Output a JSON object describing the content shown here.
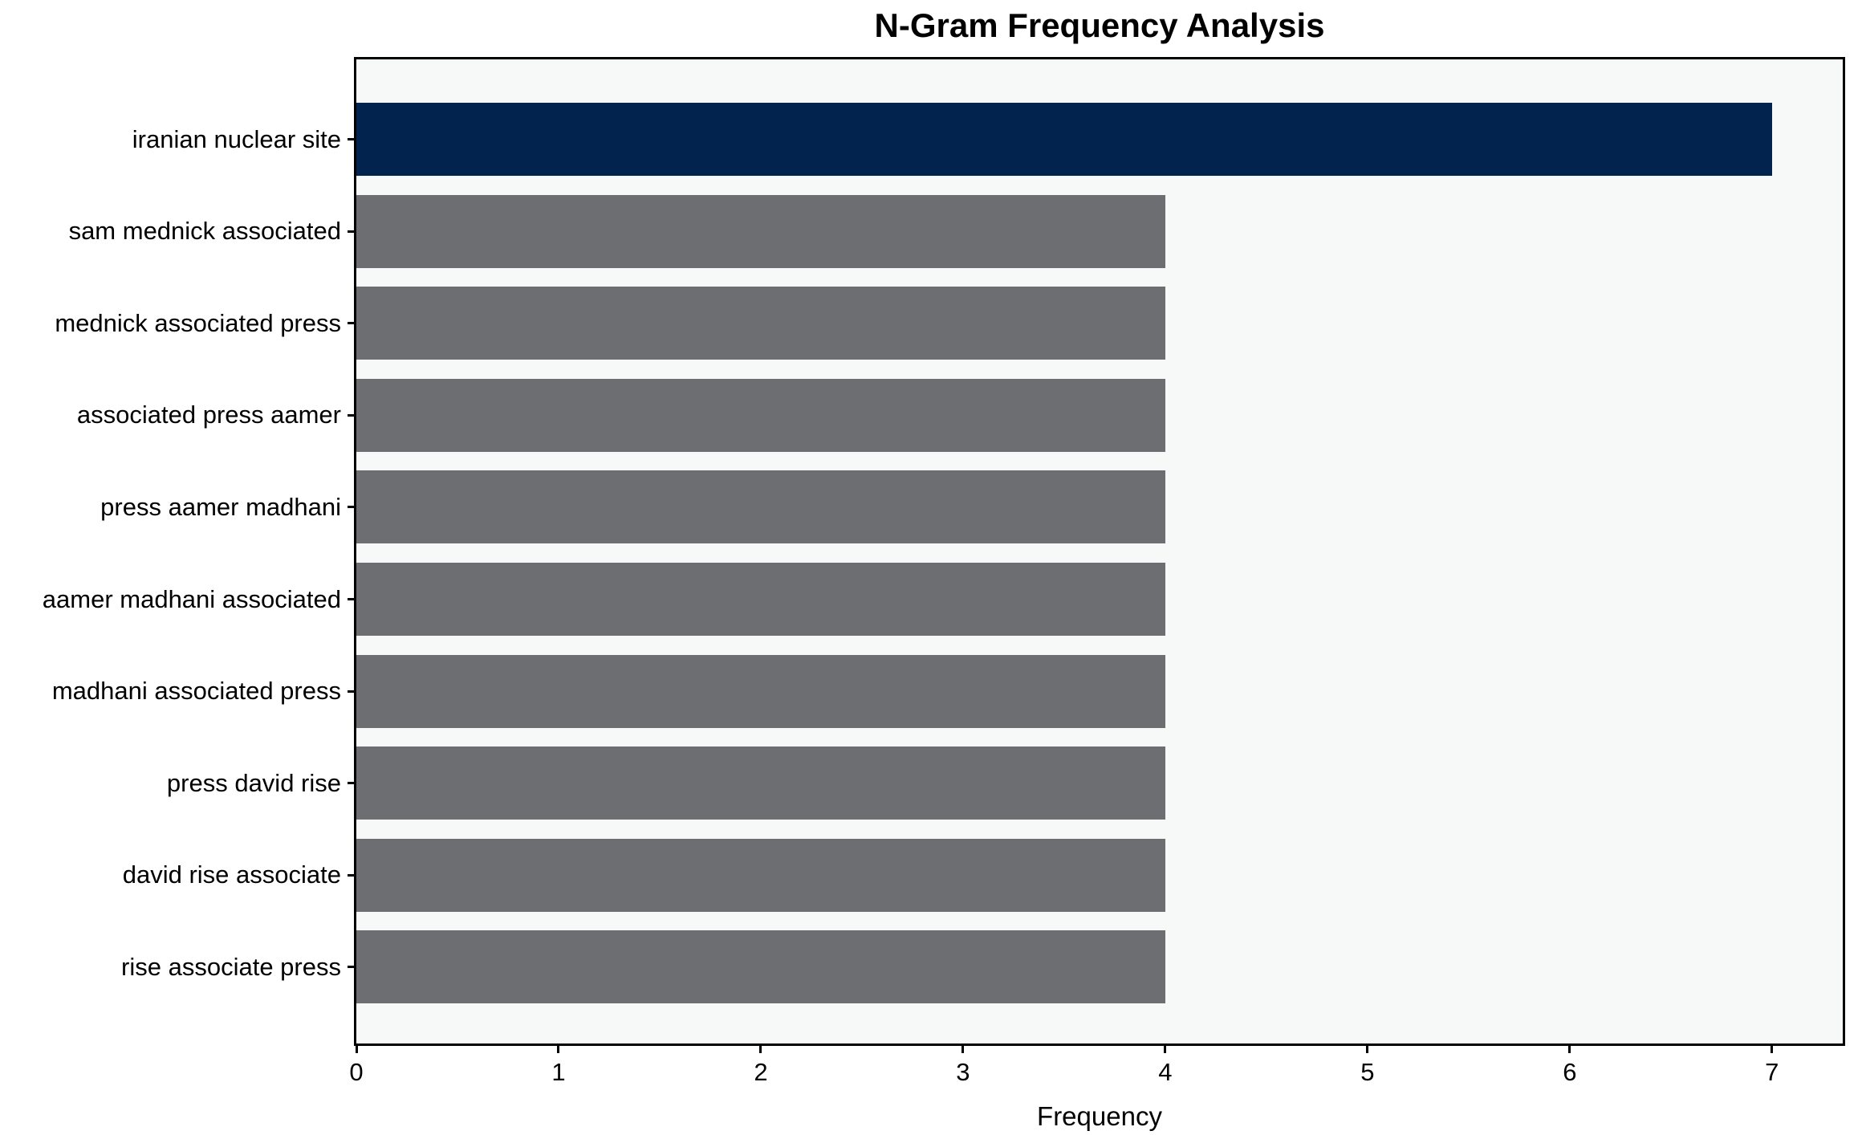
{
  "chart_data": {
    "type": "bar",
    "orientation": "horizontal",
    "title": "N-Gram Frequency Analysis",
    "xlabel": "Frequency",
    "ylabel": "",
    "categories": [
      "iranian nuclear site",
      "sam mednick associated",
      "mednick associated press",
      "associated press aamer",
      "press aamer madhani",
      "aamer madhani associated",
      "madhani associated press",
      "press david rise",
      "david rise associate",
      "rise associate press"
    ],
    "values": [
      7,
      4,
      4,
      4,
      4,
      4,
      4,
      4,
      4,
      4
    ],
    "bar_colors": [
      "#02234d",
      "#6d6e71",
      "#6d6e71",
      "#6d6e71",
      "#6d6e71",
      "#6d6e71",
      "#6d6e71",
      "#6d6e71",
      "#6d6e71",
      "#6d6e71"
    ],
    "x_ticks": [
      "0",
      "1",
      "2",
      "3",
      "4",
      "5",
      "6",
      "7"
    ],
    "xlim": [
      0,
      7.35
    ],
    "grid": false,
    "legend_position": "none",
    "colors": {
      "highlight_bar": "#02234d",
      "default_bar": "#6d6e71",
      "plot_background": "#f7f8f8",
      "axis": "#000000",
      "figure_background": "#ffffff"
    }
  }
}
